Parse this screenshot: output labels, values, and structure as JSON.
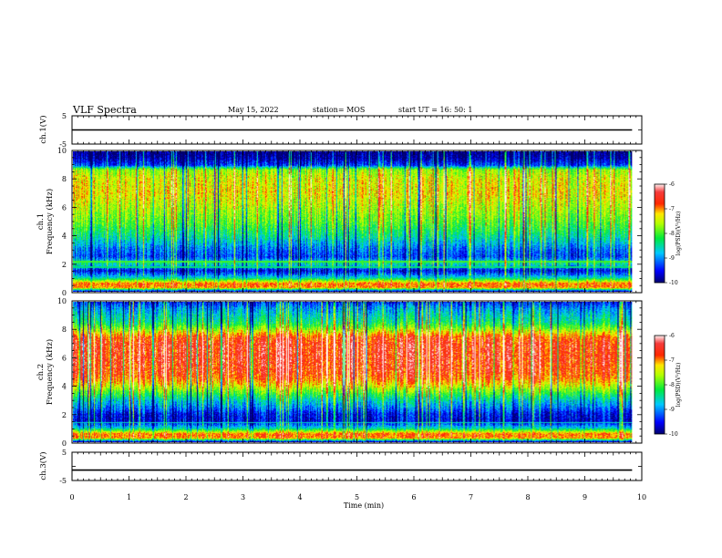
{
  "header": {
    "title": "VLF Spectra",
    "date": "May 15, 2022",
    "station": "station= MOS",
    "start": "start  UT =   16: 50: 1"
  },
  "chart_data": {
    "type": "heatmap",
    "x_axis": {
      "label": "Time  (min)",
      "range": [
        0,
        10
      ],
      "ticks": [
        "0",
        "1",
        "2",
        "3",
        "4",
        "5",
        "6",
        "7",
        "8",
        "9",
        "10"
      ],
      "data_end": 9.83
    },
    "panels": [
      {
        "id": "ch1-waveform",
        "type": "line",
        "ylabel": "ch.1(V)",
        "yticks": [
          "5",
          "-5"
        ],
        "ylim": [
          -5,
          5
        ],
        "trace_level": 0
      },
      {
        "id": "ch1-spectrogram",
        "type": "heatmap",
        "ylabel_line1": "ch.1",
        "ylabel_line2": "Frequency (kHz)",
        "yticks": [
          "0",
          "2",
          "4",
          "6",
          "8",
          "10"
        ],
        "ylim": [
          0,
          10
        ],
        "zlim": [
          -10,
          -6
        ],
        "profile": {
          "freq_khz": [
            0,
            0.3,
            0.6,
            1.0,
            1.5,
            2.0,
            2.5,
            3.0,
            4.0,
            5.0,
            6.0,
            7.0,
            8.0,
            8.7,
            9.0,
            9.5,
            10
          ],
          "log_psd": [
            -10,
            -7.0,
            -6.9,
            -8.6,
            -9.6,
            -8.4,
            -9.3,
            -9.1,
            -8.4,
            -7.9,
            -7.6,
            -7.3,
            -7.4,
            -7.7,
            -9.3,
            -9.8,
            -10
          ]
        }
      },
      {
        "id": "ch2-spectrogram",
        "type": "heatmap",
        "ylabel_line1": "ch.2",
        "ylabel_line2": "Frequency (kHz)",
        "yticks": [
          "0",
          "2",
          "4",
          "6",
          "8",
          "10"
        ],
        "ylim": [
          0,
          10
        ],
        "zlim": [
          -10,
          -6
        ],
        "profile": {
          "freq_khz": [
            0,
            0.3,
            0.6,
            1.0,
            1.5,
            2.0,
            2.5,
            3.0,
            3.5,
            4.0,
            4.5,
            5.0,
            6.0,
            7.0,
            7.5,
            8.0,
            8.5,
            9.0,
            9.5,
            10
          ],
          "log_psd": [
            -10,
            -7.0,
            -6.9,
            -8.6,
            -9.6,
            -9.5,
            -9.0,
            -8.6,
            -8.0,
            -7.4,
            -6.9,
            -6.7,
            -6.6,
            -6.6,
            -6.8,
            -7.6,
            -8.3,
            -8.6,
            -8.9,
            -9.4
          ]
        }
      },
      {
        "id": "ch3-waveform",
        "type": "line",
        "ylabel": "ch.3(V)",
        "yticks": [
          "5",
          "-5"
        ],
        "ylim": [
          -5,
          5
        ],
        "trace_level": -1.3
      }
    ],
    "colorbar": {
      "label": "log(PSD)(V²/Hz)",
      "ticks": [
        "-6",
        "-7",
        "-8",
        "-9",
        "-10"
      ],
      "range": [
        -10,
        -6
      ],
      "colors": [
        "#000080",
        "#0000ff",
        "#00ffff",
        "#00ff00",
        "#ffff00",
        "#ff0000",
        "#ffffff"
      ]
    }
  }
}
